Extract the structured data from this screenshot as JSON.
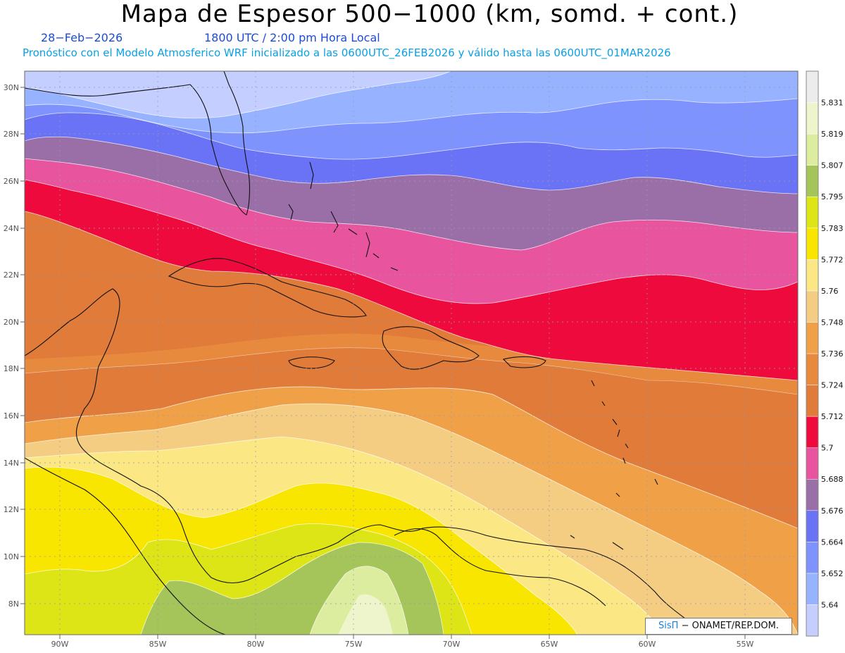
{
  "header": {
    "title": "Mapa de Espesor 500−1000 (km, somd. + cont.)",
    "date": "28−Feb−2026",
    "time": "1800 UTC / 2:00 pm Hora Local",
    "forecast": "Pronóstico con el Modelo Atmosferico WRF inicializado a las 0600UTC_26FEB2026 y válido hasta las  0600UTC_01MAR2026"
  },
  "axes": {
    "lat_labels": [
      "30N",
      "28N",
      "26N",
      "24N",
      "22N",
      "20N",
      "18N",
      "16N",
      "14N",
      "12N",
      "10N",
      "8N"
    ],
    "lon_labels": [
      "90W",
      "85W",
      "80W",
      "75W",
      "70W",
      "65W",
      "60W",
      "55W"
    ]
  },
  "colorbar": {
    "levels": [
      "5.64",
      "5.652",
      "5.664",
      "5.676",
      "5.688",
      "5.7",
      "5.712",
      "5.724",
      "5.736",
      "5.748",
      "5.76",
      "5.772",
      "5.783",
      "5.795",
      "5.807",
      "5.819",
      "5.831"
    ],
    "colors": [
      "#c4cfff",
      "#97b2ff",
      "#7f93ff",
      "#6a72f5",
      "#9a6fa8",
      "#e8559e",
      "#ee0a3c",
      "#e07b3a",
      "#e88a3e",
      "#f0a148",
      "#f4cd82",
      "#fbe784",
      "#f8e500",
      "#dde516",
      "#a5c45a",
      "#ddeda0",
      "#eef5cc",
      "#ececec"
    ]
  },
  "credit": {
    "brand": "SisΠ",
    "text": "− ONAMET/REP.DOM."
  }
}
